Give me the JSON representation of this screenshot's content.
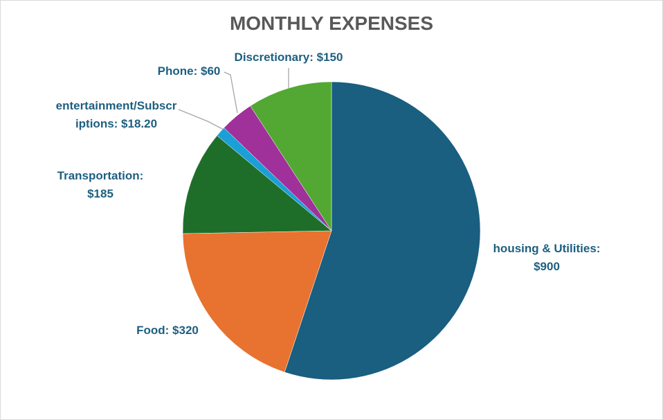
{
  "chart_data": {
    "type": "pie",
    "title": "MONTHLY EXPENSES",
    "categories": [
      "housing & Utilities",
      "Food",
      "Transportation",
      "entertainment/Subscriptions",
      "Phone",
      "Discretionary"
    ],
    "values": [
      900,
      320,
      185,
      18.2,
      60,
      150
    ],
    "value_labels": [
      "$900",
      "$320",
      "$185",
      "$18.20",
      "$60",
      "$150"
    ],
    "label_separator": ": ",
    "colors": [
      "#1a5e80",
      "#e8722f",
      "#1e6e2a",
      "#1a9fd6",
      "#a0309a",
      "#52a832"
    ]
  }
}
